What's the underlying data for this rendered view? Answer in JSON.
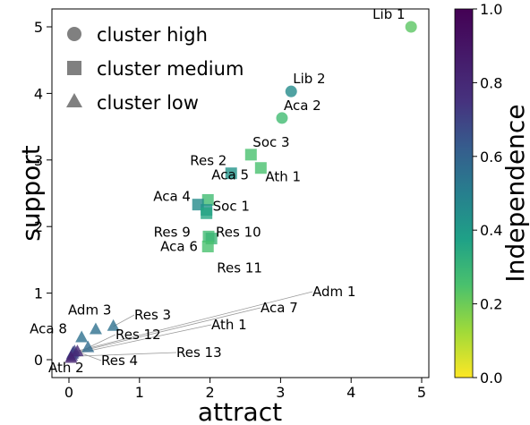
{
  "chart_data": {
    "type": "scatter",
    "xlabel": "attract",
    "ylabel": "support",
    "xlim": [
      -0.25,
      5.1
    ],
    "ylim": [
      -0.25,
      5.2
    ],
    "xticks": [
      "0",
      "1",
      "2",
      "3",
      "4",
      "5"
    ],
    "yticks": [
      "0",
      "1",
      "2",
      "3",
      "4",
      "5"
    ],
    "legend": {
      "placement": "top-left",
      "entries": [
        {
          "marker": "circle",
          "label": "cluster high"
        },
        {
          "marker": "square",
          "label": "cluster medium"
        },
        {
          "marker": "triangle",
          "label": "cluster low"
        }
      ]
    },
    "colorbar": {
      "label": "Independence",
      "range": [
        0,
        1
      ],
      "ticks": [
        "0.0",
        "0.2",
        "0.4",
        "0.6",
        "0.8",
        "1.0"
      ],
      "colormap": "viridis"
    },
    "points": [
      {
        "label": "Lib 1",
        "x": 4.85,
        "y": 5.0,
        "cluster": "high",
        "independence": 0.35
      },
      {
        "label": "Lib 2",
        "x": 3.15,
        "y": 4.03,
        "cluster": "high",
        "independence": 0.58
      },
      {
        "label": "Aca 2",
        "x": 3.02,
        "y": 3.63,
        "cluster": "high",
        "independence": 0.4
      },
      {
        "label": "Soc 3",
        "x": 2.58,
        "y": 3.08,
        "cluster": "medium",
        "independence": 0.38
      },
      {
        "label": "Ath 1",
        "x": 2.72,
        "y": 2.88,
        "cluster": "medium",
        "independence": 0.38
      },
      {
        "label": "Res 2",
        "x": 2.3,
        "y": 2.8,
        "cluster": "medium",
        "independence": 0.55
      },
      {
        "label": "Aca 5",
        "x": 1.97,
        "y": 2.4,
        "cluster": "medium",
        "independence": 0.4
      },
      {
        "label": "Aca 4",
        "x": 1.83,
        "y": 2.33,
        "cluster": "medium",
        "independence": 0.58
      },
      {
        "label": "Soc 1",
        "x": 1.95,
        "y": 2.25,
        "cluster": "medium",
        "independence": 0.55
      },
      {
        "label": "Res 9",
        "x": 1.95,
        "y": 2.2,
        "cluster": "medium",
        "independence": 0.48
      },
      {
        "label": "Res 10",
        "x": 1.98,
        "y": 1.85,
        "cluster": "medium",
        "independence": 0.4
      },
      {
        "label": "Aca 6",
        "x": 2.02,
        "y": 1.82,
        "cluster": "medium",
        "independence": 0.42
      },
      {
        "label": "Res 11",
        "x": 1.97,
        "y": 1.7,
        "cluster": "medium",
        "independence": 0.38
      },
      {
        "label": "Adm 1",
        "x": 0.08,
        "y": 0.12,
        "cluster": "low",
        "independence": 0.82
      },
      {
        "label": "Aca 7",
        "x": 0.06,
        "y": 0.1,
        "cluster": "low",
        "independence": 0.82
      },
      {
        "label": "Ath 1",
        "x": 0.05,
        "y": 0.08,
        "cluster": "low",
        "independence": 0.82
      },
      {
        "label": "Res 13",
        "x": 0.04,
        "y": 0.05,
        "cluster": "low",
        "independence": 0.85
      },
      {
        "label": "Adm 3",
        "x": 0.38,
        "y": 0.45,
        "cluster": "low",
        "independence": 0.68
      },
      {
        "label": "Res 3",
        "x": 0.63,
        "y": 0.5,
        "cluster": "low",
        "independence": 0.68
      },
      {
        "label": "Aca 8",
        "x": 0.18,
        "y": 0.33,
        "cluster": "low",
        "independence": 0.68
      },
      {
        "label": "Res 12",
        "x": 0.27,
        "y": 0.18,
        "cluster": "low",
        "independence": 0.7
      },
      {
        "label": "Res 4",
        "x": 0.12,
        "y": 0.12,
        "cluster": "low",
        "independence": 0.9
      },
      {
        "label": "Ath 2",
        "x": 0.03,
        "y": 0.02,
        "cluster": "low",
        "independence": 0.92
      }
    ]
  }
}
